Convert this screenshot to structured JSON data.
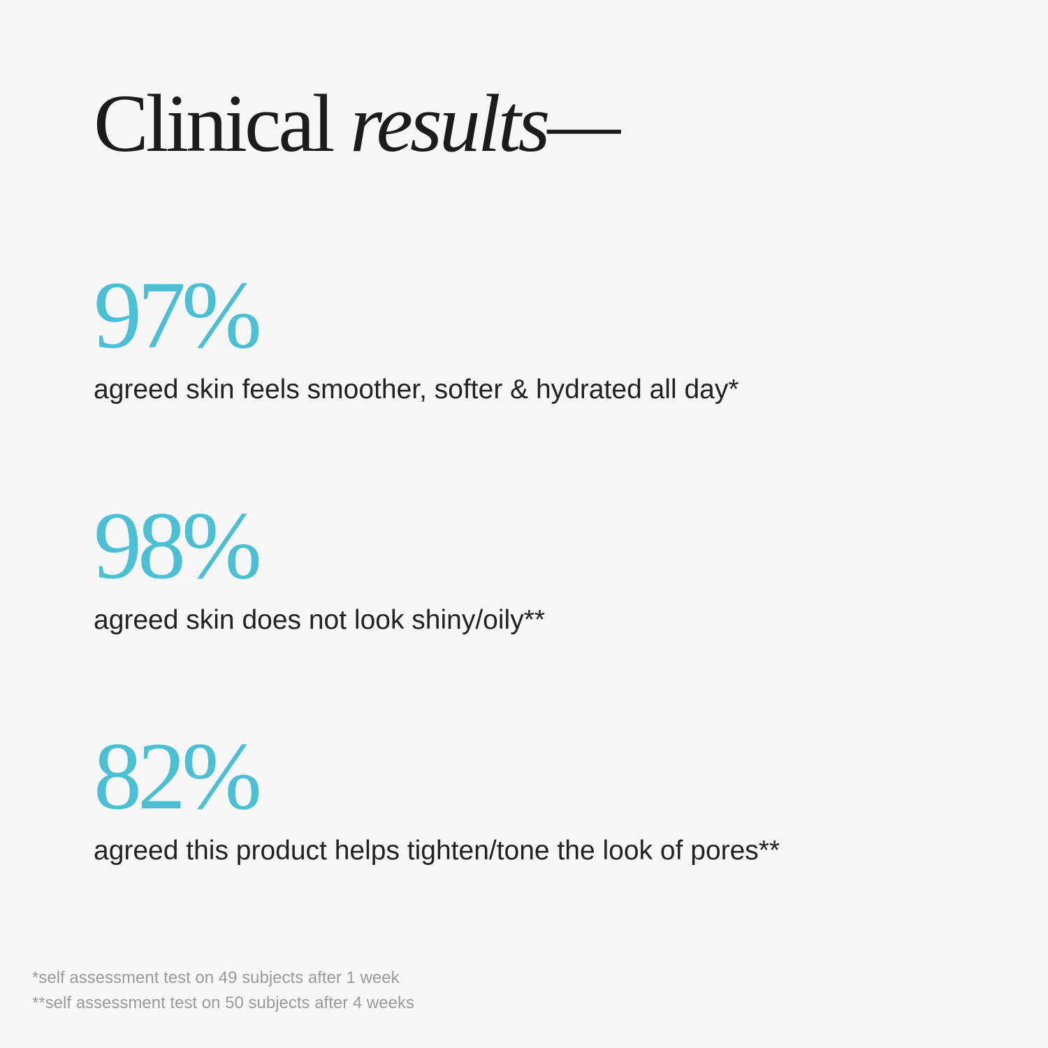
{
  "title": {
    "regular": "Clinical",
    "italic": "results—"
  },
  "accent_color": "#4bc0d5",
  "stats": [
    {
      "value": "97%",
      "description": "agreed skin feels smoother, softer & hydrated all day*"
    },
    {
      "value": "98%",
      "description": "agreed skin does not look shiny/oily**"
    },
    {
      "value": "82%",
      "description": "agreed this product helps tighten/tone the look of pores**"
    }
  ],
  "footnotes": [
    "*self assessment test on 49 subjects after 1 week",
    "**self assessment test on 50 subjects after 4 weeks"
  ]
}
